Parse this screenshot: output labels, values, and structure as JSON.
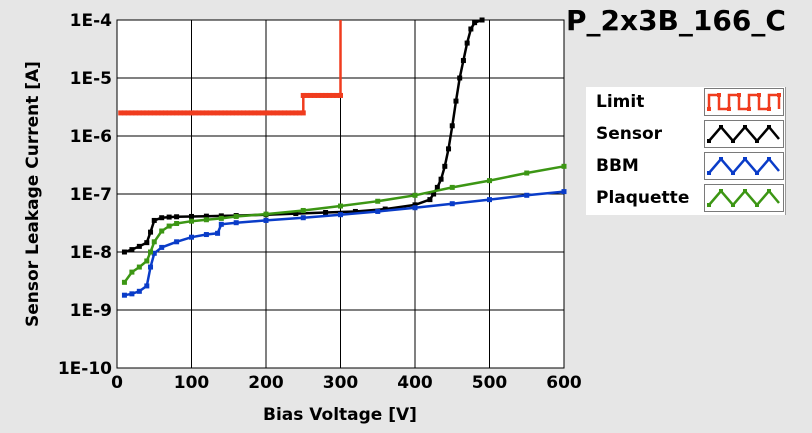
{
  "chart_data": {
    "type": "line",
    "title": "P_2x3B_166_C",
    "xlabel": "Bias Voltage [V]",
    "ylabel": "Sensor Leakage Current [A]",
    "xlim": [
      0,
      600
    ],
    "ylim": [
      1e-10,
      0.0001
    ],
    "y_scale": "log",
    "grid": true,
    "legend_position": "right",
    "x_ticks": [
      0,
      100,
      200,
      300,
      400,
      500,
      600
    ],
    "x_tick_labels": [
      "0",
      "100",
      "200",
      "300",
      "400",
      "500",
      "600"
    ],
    "y_ticks": [
      1e-10,
      1e-09,
      1e-08,
      1e-07,
      1e-06,
      1e-05,
      0.0001
    ],
    "y_tick_labels": [
      "1E-10",
      "1E-9",
      "1E-8",
      "1E-7",
      "1E-6",
      "1E-5",
      "1E-4"
    ],
    "series": [
      {
        "name": "Limit",
        "color": "#f03c1e",
        "step": true,
        "x": [
          5,
          250,
          250,
          300,
          300
        ],
        "y": [
          2.5e-06,
          2.5e-06,
          5e-06,
          5e-06,
          0.0001
        ]
      },
      {
        "name": "Sensor",
        "color": "#000000",
        "x": [
          10,
          20,
          30,
          40,
          45,
          50,
          60,
          70,
          80,
          100,
          120,
          140,
          160,
          200,
          240,
          280,
          320,
          360,
          400,
          420,
          425,
          430,
          435,
          440,
          445,
          450,
          455,
          460,
          465,
          470,
          475,
          480,
          490
        ],
        "y": [
          1e-08,
          1.1e-08,
          1.25e-08,
          1.45e-08,
          2.2e-08,
          3.5e-08,
          3.9e-08,
          4e-08,
          4.05e-08,
          4.1e-08,
          4.15e-08,
          4.2e-08,
          4.25e-08,
          4.4e-08,
          4.6e-08,
          4.8e-08,
          5e-08,
          5.5e-08,
          6.5e-08,
          8e-08,
          1e-07,
          1.3e-07,
          1.8e-07,
          3e-07,
          6e-07,
          1.5e-06,
          4e-06,
          1e-05,
          2e-05,
          4e-05,
          7e-05,
          9e-05,
          0.0001
        ]
      },
      {
        "name": "BBM",
        "color": "#0a3cc8",
        "x": [
          10,
          20,
          30,
          40,
          45,
          50,
          60,
          80,
          100,
          120,
          135,
          140,
          160,
          200,
          250,
          300,
          350,
          400,
          450,
          500,
          550,
          600
        ],
        "y": [
          1.8e-09,
          1.9e-09,
          2.1e-09,
          2.6e-09,
          5.5e-09,
          9.5e-09,
          1.2e-08,
          1.5e-08,
          1.8e-08,
          2e-08,
          2.1e-08,
          3e-08,
          3.2e-08,
          3.5e-08,
          3.9e-08,
          4.4e-08,
          5e-08,
          5.8e-08,
          6.8e-08,
          8e-08,
          9.5e-08,
          1.1e-07
        ]
      },
      {
        "name": "Plaquette",
        "color": "#3c9614",
        "x": [
          10,
          20,
          30,
          40,
          45,
          50,
          60,
          70,
          80,
          100,
          120,
          140,
          160,
          200,
          250,
          300,
          350,
          400,
          450,
          500,
          550,
          600
        ],
        "y": [
          3e-09,
          4.5e-09,
          5.5e-09,
          7e-09,
          1e-08,
          1.5e-08,
          2.3e-08,
          2.8e-08,
          3.1e-08,
          3.4e-08,
          3.6e-08,
          3.8e-08,
          4.1e-08,
          4.5e-08,
          5.2e-08,
          6.2e-08,
          7.5e-08,
          9.5e-08,
          1.3e-07,
          1.7e-07,
          2.3e-07,
          3e-07
        ]
      }
    ]
  }
}
